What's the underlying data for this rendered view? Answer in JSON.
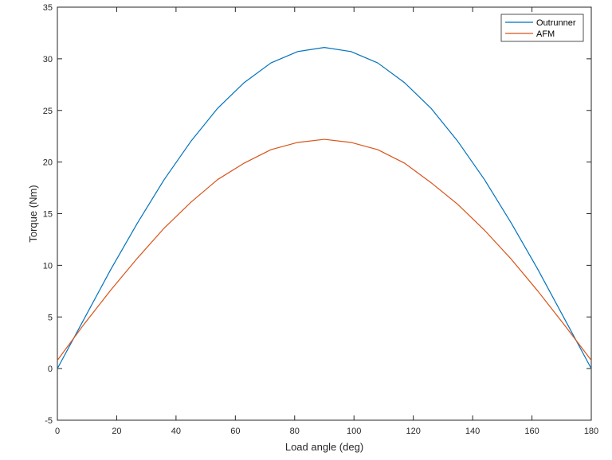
{
  "chart_data": {
    "type": "line",
    "xlabel": "Load angle (deg)",
    "ylabel": "Torque (Nm)",
    "xlim": [
      0,
      180
    ],
    "ylim": [
      -5,
      35
    ],
    "xticks": [
      0,
      20,
      40,
      60,
      80,
      100,
      120,
      140,
      160,
      180
    ],
    "yticks": [
      -5,
      0,
      5,
      10,
      15,
      20,
      25,
      30,
      35
    ],
    "grid": false,
    "legend_position": "top-right",
    "series": [
      {
        "name": "Outrunner",
        "color": "#0072bd",
        "x": [
          0,
          9,
          18,
          27,
          36,
          45,
          54,
          63,
          72,
          81,
          90,
          99,
          108,
          117,
          126,
          135,
          144,
          153,
          162,
          171,
          180
        ],
        "y": [
          0,
          4.8,
          9.6,
          14.1,
          18.3,
          22.0,
          25.2,
          27.7,
          29.6,
          30.7,
          31.1,
          30.7,
          29.6,
          27.7,
          25.2,
          22.0,
          18.3,
          14.1,
          9.6,
          4.8,
          0
        ]
      },
      {
        "name": "AFM",
        "color": "#d95319",
        "x": [
          0,
          9,
          18,
          27,
          36,
          45,
          54,
          63,
          72,
          81,
          90,
          99,
          108,
          117,
          126,
          135,
          144,
          153,
          162,
          171,
          180
        ],
        "y": [
          0.8,
          4.3,
          7.6,
          10.7,
          13.6,
          16.1,
          18.3,
          19.9,
          21.2,
          21.9,
          22.2,
          21.9,
          21.2,
          19.9,
          18.0,
          15.9,
          13.4,
          10.6,
          7.5,
          4.2,
          0.8
        ]
      }
    ]
  }
}
